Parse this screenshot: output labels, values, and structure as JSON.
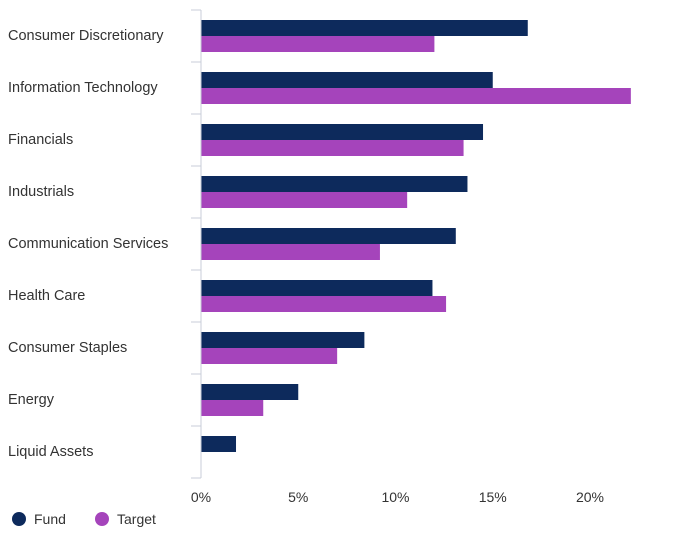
{
  "chart_data": {
    "type": "bar",
    "orientation": "horizontal",
    "categories": [
      "Consumer Discretionary",
      "Information Technology",
      "Financials",
      "Industrials",
      "Communication Services",
      "Health Care",
      "Consumer Staples",
      "Energy",
      "Liquid Assets"
    ],
    "series": [
      {
        "name": "Fund",
        "color": "#0d2a5c",
        "values": [
          16.8,
          15.0,
          14.5,
          13.7,
          13.1,
          11.9,
          8.4,
          5.0,
          1.8
        ]
      },
      {
        "name": "Target",
        "color": "#a544bb",
        "values": [
          12.0,
          22.1,
          13.5,
          10.6,
          9.2,
          12.6,
          7.0,
          3.2,
          null
        ]
      }
    ],
    "xlim": [
      0,
      25
    ],
    "xticks": [
      0,
      5,
      10,
      15,
      20
    ],
    "tick_format": "{v}%",
    "grid": false,
    "category_separators": true,
    "legend": {
      "position": "bottom-left",
      "marker": "circle",
      "entries": [
        "Fund",
        "Target"
      ]
    }
  }
}
